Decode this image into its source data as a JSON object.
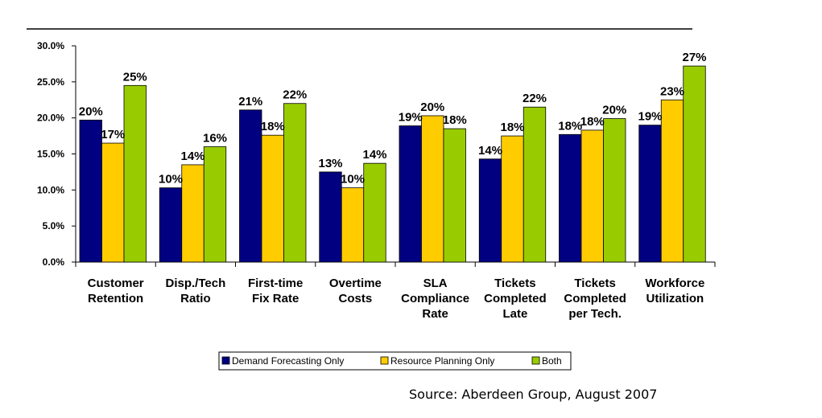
{
  "chart_data": {
    "type": "bar",
    "categories": [
      [
        "Customer",
        "Retention"
      ],
      [
        "Disp./Tech",
        "Ratio"
      ],
      [
        "First-time",
        "Fix Rate"
      ],
      [
        "Overtime",
        "Costs"
      ],
      [
        "SLA",
        "Compliance",
        "Rate"
      ],
      [
        "Tickets",
        "Completed",
        "Late"
      ],
      [
        "Tickets",
        "Completed",
        "per Tech."
      ],
      [
        "Workforce",
        "Utilization"
      ]
    ],
    "series": [
      {
        "name": "Demand Forecasting Only",
        "color": "#000080",
        "values": [
          19.7,
          10.3,
          21.1,
          12.5,
          18.9,
          14.3,
          17.7,
          19.0
        ],
        "labels": [
          "20%",
          "10%",
          "21%",
          "13%",
          "19%",
          "14%",
          "18%",
          "19%"
        ]
      },
      {
        "name": "Resource Planning Only",
        "color": "#FFCC00",
        "values": [
          16.5,
          13.5,
          17.6,
          10.3,
          20.3,
          17.5,
          18.3,
          22.5
        ],
        "labels": [
          "17%",
          "14%",
          "18%",
          "10%",
          "20%",
          "18%",
          "18%",
          "23%"
        ]
      },
      {
        "name": "Both",
        "color": "#99CC00",
        "values": [
          24.5,
          16.0,
          22.0,
          13.7,
          18.5,
          21.5,
          19.9,
          27.2
        ],
        "labels": [
          "25%",
          "16%",
          "22%",
          "14%",
          "18%",
          "22%",
          "20%",
          "27%"
        ]
      }
    ],
    "ylim": [
      0,
      30
    ],
    "yticks": [
      "0.0%",
      "5.0%",
      "10.0%",
      "15.0%",
      "20.0%",
      "25.0%",
      "30.0%"
    ],
    "ytick_values": [
      0,
      5,
      10,
      15,
      20,
      25,
      30
    ],
    "grid": false,
    "legend_position": "bottom"
  },
  "source_text": "Source: Aberdeen Group, August 2007"
}
